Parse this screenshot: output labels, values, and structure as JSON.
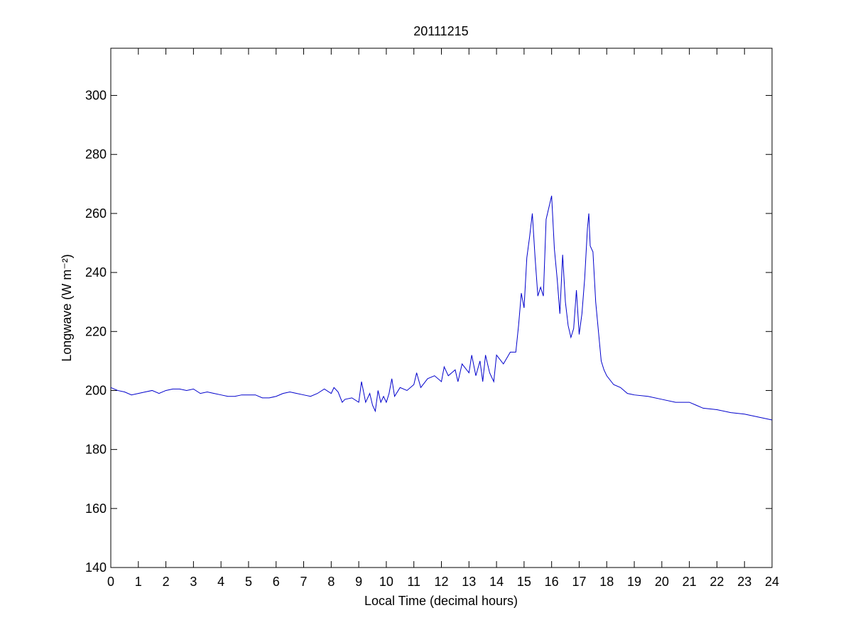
{
  "chart_data": {
    "type": "line",
    "title": "20111215",
    "xlabel": "Local Time (decimal hours)",
    "ylabel": "Longwave (W m⁻²)",
    "xlim": [
      0,
      24
    ],
    "xticks": [
      0,
      1,
      2,
      3,
      4,
      5,
      6,
      7,
      8,
      9,
      10,
      11,
      12,
      13,
      14,
      15,
      16,
      17,
      18,
      19,
      20,
      21,
      22,
      23,
      24
    ],
    "ylim": [
      140,
      316
    ],
    "yticks": [
      140,
      160,
      180,
      200,
      220,
      240,
      260,
      280,
      300
    ],
    "series": [
      {
        "color": "#0000cc",
        "x": [
          0,
          0.25,
          0.5,
          0.75,
          1,
          1.25,
          1.5,
          1.75,
          2,
          2.25,
          2.5,
          2.75,
          3,
          3.25,
          3.5,
          3.75,
          4,
          4.25,
          4.5,
          4.75,
          5,
          5.25,
          5.5,
          5.75,
          6,
          6.25,
          6.5,
          6.75,
          7,
          7.25,
          7.5,
          7.75,
          8,
          8.1,
          8.25,
          8.4,
          8.5,
          8.75,
          9,
          9.1,
          9.25,
          9.4,
          9.5,
          9.6,
          9.7,
          9.8,
          9.9,
          10,
          10.1,
          10.2,
          10.3,
          10.5,
          10.75,
          11,
          11.1,
          11.25,
          11.5,
          11.75,
          12,
          12.1,
          12.25,
          12.5,
          12.6,
          12.75,
          13,
          13.1,
          13.25,
          13.4,
          13.5,
          13.6,
          13.75,
          13.9,
          14,
          14.25,
          14.5,
          14.7,
          14.8,
          14.9,
          15,
          15.1,
          15.2,
          15.3,
          15.4,
          15.5,
          15.6,
          15.7,
          15.8,
          15.9,
          16,
          16.1,
          16.2,
          16.3,
          16.4,
          16.5,
          16.6,
          16.7,
          16.8,
          16.9,
          17,
          17.1,
          17.2,
          17.3,
          17.35,
          17.4,
          17.5,
          17.6,
          17.7,
          17.8,
          17.9,
          18,
          18.25,
          18.5,
          18.75,
          19,
          19.5,
          20,
          20.5,
          21,
          21.25,
          21.5,
          22,
          22.5,
          23,
          23.5,
          24
        ],
        "values": [
          201,
          200,
          199.5,
          198.5,
          199,
          199.5,
          200,
          199,
          200,
          200.5,
          200.5,
          200,
          200.5,
          199,
          199.5,
          199,
          198.5,
          198,
          198,
          198.5,
          198.5,
          198.5,
          197.5,
          197.5,
          198,
          199,
          199.5,
          199,
          198.5,
          198,
          199,
          200.5,
          199,
          201,
          199.5,
          196,
          197,
          197.5,
          196,
          203,
          196,
          199,
          195,
          193,
          200,
          196,
          198,
          196,
          199,
          204,
          198,
          201,
          200,
          202,
          206,
          201,
          204,
          205,
          203,
          208,
          205,
          207,
          203,
          209,
          206,
          212,
          205,
          210,
          203,
          212,
          206,
          203,
          212,
          209,
          213,
          213,
          222,
          233,
          228,
          245,
          252,
          260,
          245,
          232,
          235,
          232,
          258,
          262,
          266,
          248,
          238,
          226,
          246,
          230,
          222,
          218,
          221,
          234,
          219,
          226,
          238,
          255,
          260,
          249,
          247,
          230,
          220,
          210,
          207,
          205,
          202,
          201,
          199,
          198.5,
          198,
          197,
          196,
          196,
          195,
          194,
          193.5,
          192.5,
          192,
          191,
          190
        ]
      }
    ]
  }
}
